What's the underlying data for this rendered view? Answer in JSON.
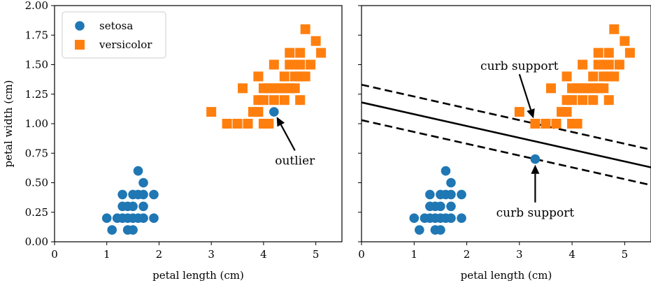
{
  "colors": {
    "setosa": "#1f77b4",
    "versicolor": "#ff7f0e",
    "line": "#000000"
  },
  "chart_data": [
    {
      "type": "scatter",
      "title": "",
      "xlabel": "petal length (cm)",
      "ylabel": "petal width (cm)",
      "xlim": [
        0,
        5.5
      ],
      "ylim": [
        0,
        2.0
      ],
      "xticks": [
        0,
        1,
        2,
        3,
        4,
        5
      ],
      "yticks": [
        0.0,
        0.25,
        0.5,
        0.75,
        1.0,
        1.25,
        1.5,
        1.75,
        2.0
      ],
      "ytick_labels": [
        "0.00",
        "0.25",
        "0.50",
        "0.75",
        "1.00",
        "1.25",
        "1.50",
        "1.75",
        "2.00"
      ],
      "legend": {
        "placement": "top-left",
        "entries": [
          "setosa",
          "versicolor"
        ]
      },
      "series": [
        {
          "name": "setosa",
          "marker": "circle",
          "points": [
            [
              1.0,
              0.2
            ],
            [
              1.1,
              0.1
            ],
            [
              1.2,
              0.2
            ],
            [
              1.3,
              0.2
            ],
            [
              1.3,
              0.3
            ],
            [
              1.3,
              0.4
            ],
            [
              1.4,
              0.1
            ],
            [
              1.4,
              0.2
            ],
            [
              1.4,
              0.3
            ],
            [
              1.5,
              0.1
            ],
            [
              1.5,
              0.2
            ],
            [
              1.5,
              0.3
            ],
            [
              1.5,
              0.4
            ],
            [
              1.6,
              0.2
            ],
            [
              1.6,
              0.4
            ],
            [
              1.6,
              0.6
            ],
            [
              1.7,
              0.2
            ],
            [
              1.7,
              0.3
            ],
            [
              1.7,
              0.4
            ],
            [
              1.7,
              0.5
            ],
            [
              1.9,
              0.2
            ],
            [
              1.9,
              0.4
            ],
            [
              4.2,
              1.1
            ]
          ]
        },
        {
          "name": "versicolor",
          "marker": "square",
          "points": [
            [
              3.0,
              1.1
            ],
            [
              3.3,
              1.0
            ],
            [
              3.5,
              1.0
            ],
            [
              3.6,
              1.3
            ],
            [
              3.7,
              1.0
            ],
            [
              3.8,
              1.1
            ],
            [
              3.9,
              1.1
            ],
            [
              3.9,
              1.2
            ],
            [
              3.9,
              1.4
            ],
            [
              4.0,
              1.0
            ],
            [
              4.0,
              1.2
            ],
            [
              4.0,
              1.3
            ],
            [
              4.1,
              1.0
            ],
            [
              4.1,
              1.3
            ],
            [
              4.2,
              1.2
            ],
            [
              4.2,
              1.3
            ],
            [
              4.2,
              1.5
            ],
            [
              4.3,
              1.3
            ],
            [
              4.4,
              1.2
            ],
            [
              4.4,
              1.3
            ],
            [
              4.4,
              1.4
            ],
            [
              4.5,
              1.3
            ],
            [
              4.5,
              1.5
            ],
            [
              4.5,
              1.6
            ],
            [
              4.6,
              1.3
            ],
            [
              4.6,
              1.4
            ],
            [
              4.6,
              1.5
            ],
            [
              4.7,
              1.2
            ],
            [
              4.7,
              1.4
            ],
            [
              4.7,
              1.5
            ],
            [
              4.7,
              1.6
            ],
            [
              4.8,
              1.4
            ],
            [
              4.8,
              1.8
            ],
            [
              4.9,
              1.5
            ],
            [
              5.0,
              1.7
            ],
            [
              5.1,
              1.6
            ]
          ]
        }
      ],
      "annotations": [
        {
          "text": "outlier",
          "point": [
            4.2,
            1.1
          ],
          "text_at": [
            4.6,
            0.69
          ]
        }
      ]
    },
    {
      "type": "scatter",
      "title": "",
      "xlabel": "petal length (cm)",
      "ylabel": "",
      "xlim": [
        0,
        5.5
      ],
      "ylim": [
        0,
        2.0
      ],
      "xticks": [
        0,
        1,
        2,
        3,
        4,
        5
      ],
      "series": [
        {
          "name": "setosa",
          "marker": "circle",
          "points": [
            [
              1.0,
              0.2
            ],
            [
              1.1,
              0.1
            ],
            [
              1.2,
              0.2
            ],
            [
              1.3,
              0.2
            ],
            [
              1.3,
              0.3
            ],
            [
              1.3,
              0.4
            ],
            [
              1.4,
              0.1
            ],
            [
              1.4,
              0.2
            ],
            [
              1.4,
              0.3
            ],
            [
              1.5,
              0.1
            ],
            [
              1.5,
              0.2
            ],
            [
              1.5,
              0.3
            ],
            [
              1.5,
              0.4
            ],
            [
              1.6,
              0.2
            ],
            [
              1.6,
              0.4
            ],
            [
              1.6,
              0.6
            ],
            [
              1.7,
              0.2
            ],
            [
              1.7,
              0.3
            ],
            [
              1.7,
              0.4
            ],
            [
              1.7,
              0.5
            ],
            [
              1.9,
              0.2
            ],
            [
              1.9,
              0.4
            ],
            [
              3.3,
              0.7
            ]
          ]
        },
        {
          "name": "versicolor",
          "marker": "square",
          "points": [
            [
              3.0,
              1.1
            ],
            [
              3.3,
              1.0
            ],
            [
              3.5,
              1.0
            ],
            [
              3.6,
              1.3
            ],
            [
              3.7,
              1.0
            ],
            [
              3.8,
              1.1
            ],
            [
              3.9,
              1.1
            ],
            [
              3.9,
              1.2
            ],
            [
              3.9,
              1.4
            ],
            [
              4.0,
              1.0
            ],
            [
              4.0,
              1.2
            ],
            [
              4.0,
              1.3
            ],
            [
              4.1,
              1.0
            ],
            [
              4.1,
              1.3
            ],
            [
              4.2,
              1.2
            ],
            [
              4.2,
              1.3
            ],
            [
              4.2,
              1.5
            ],
            [
              4.3,
              1.3
            ],
            [
              4.4,
              1.2
            ],
            [
              4.4,
              1.3
            ],
            [
              4.4,
              1.4
            ],
            [
              4.5,
              1.3
            ],
            [
              4.5,
              1.5
            ],
            [
              4.5,
              1.6
            ],
            [
              4.6,
              1.3
            ],
            [
              4.6,
              1.4
            ],
            [
              4.6,
              1.5
            ],
            [
              4.7,
              1.2
            ],
            [
              4.7,
              1.4
            ],
            [
              4.7,
              1.5
            ],
            [
              4.7,
              1.6
            ],
            [
              4.8,
              1.4
            ],
            [
              4.8,
              1.8
            ],
            [
              4.9,
              1.5
            ],
            [
              5.0,
              1.7
            ],
            [
              5.1,
              1.6
            ]
          ]
        }
      ],
      "lines": [
        {
          "style": "solid",
          "points": [
            [
              0,
              1.18
            ],
            [
              5.5,
              0.63
            ]
          ]
        },
        {
          "style": "dashed",
          "points": [
            [
              0,
              1.33
            ],
            [
              5.5,
              0.78
            ]
          ]
        },
        {
          "style": "dashed",
          "points": [
            [
              0,
              1.03
            ],
            [
              5.5,
              0.48
            ]
          ]
        }
      ],
      "annotations": [
        {
          "text": "curb support",
          "point": [
            3.3,
            1.0
          ],
          "text_at": [
            3.0,
            1.49
          ]
        },
        {
          "text": "curb support",
          "point": [
            3.3,
            0.7
          ],
          "text_at": [
            3.3,
            0.25
          ]
        }
      ]
    }
  ]
}
